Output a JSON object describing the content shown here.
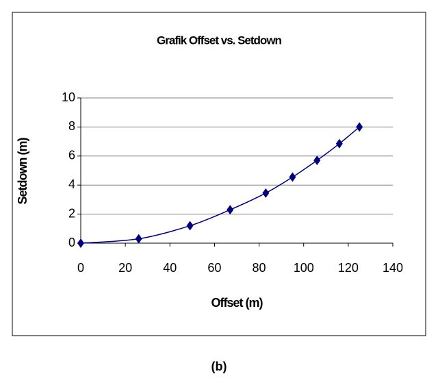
{
  "chart_data": {
    "type": "scatter",
    "title": "Grafik Offset vs. Setdown",
    "x_label": "Offset (m)",
    "y_label": "Setdown (m)",
    "series": [
      {
        "name": "Setdown",
        "color": "#000080",
        "x": [
          0,
          26,
          49,
          67,
          83,
          95,
          106,
          116,
          125
        ],
        "values": [
          0,
          0.3,
          1.2,
          2.3,
          3.45,
          4.55,
          5.7,
          6.85,
          8.0
        ]
      }
    ],
    "xlim": [
      0,
      140
    ],
    "xticks": [
      0,
      20,
      40,
      60,
      80,
      100,
      120,
      140
    ],
    "ylim": [
      0,
      10
    ],
    "yticks": [
      0,
      2,
      4,
      6,
      8,
      10
    ],
    "grid": true
  },
  "caption": "(b)"
}
